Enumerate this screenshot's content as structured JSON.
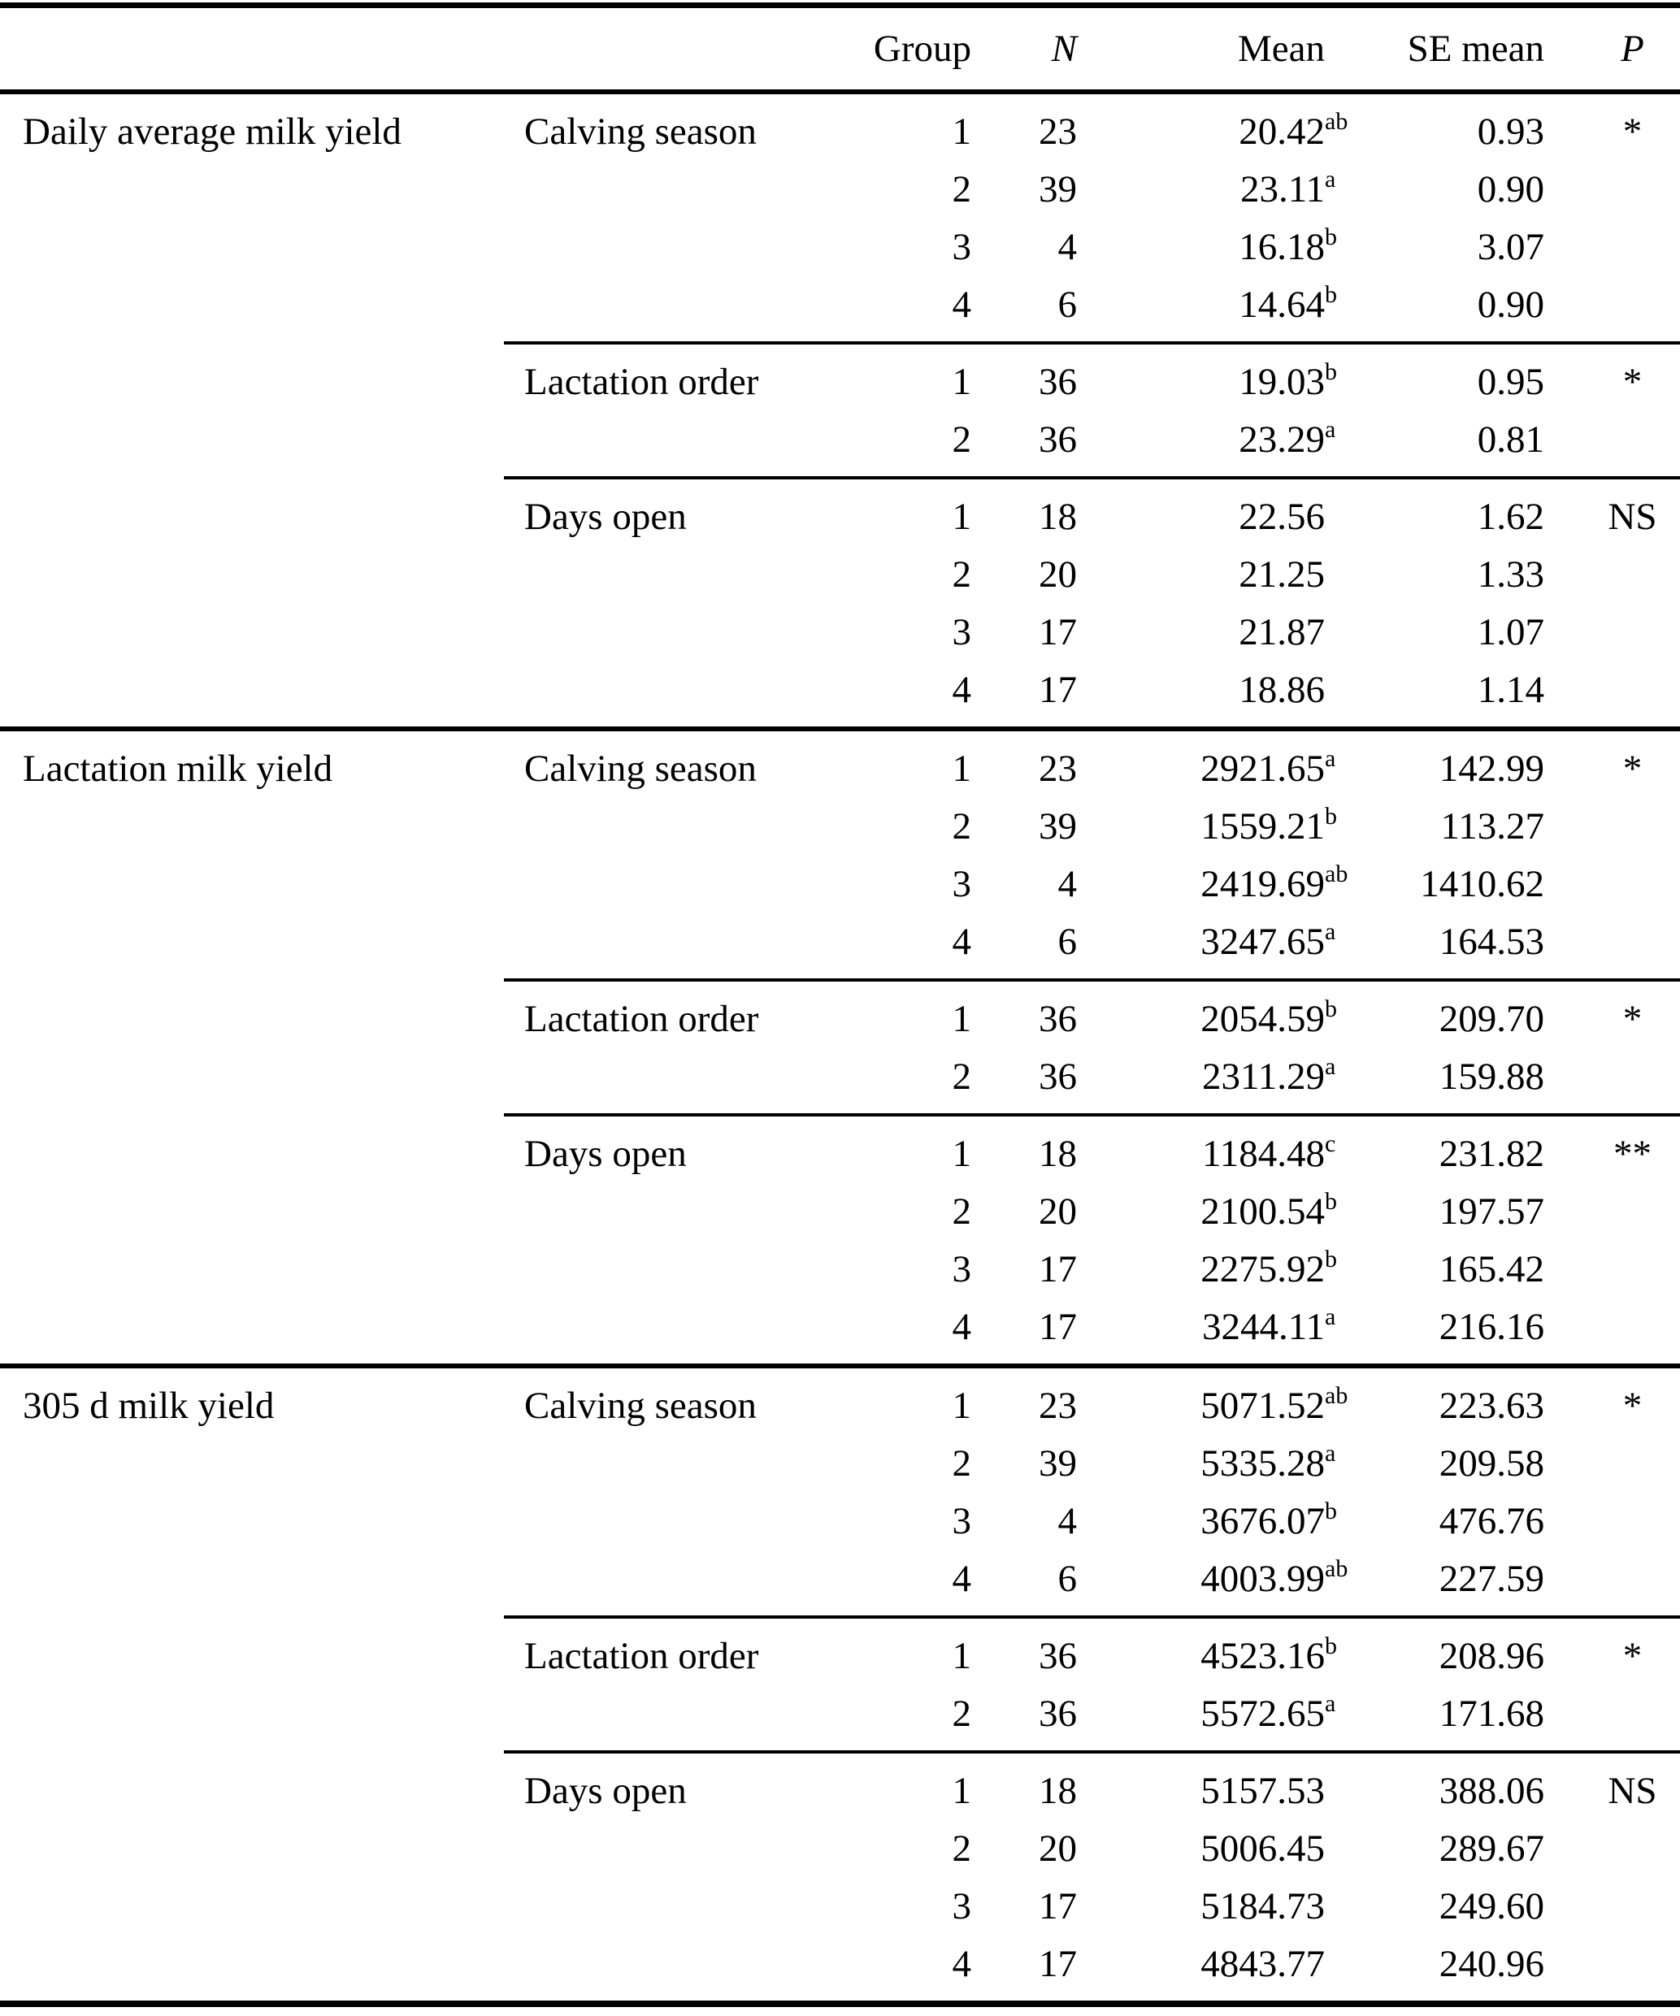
{
  "table": {
    "colors": {
      "text": "#000000",
      "background": "#ffffff",
      "rule": "#000000"
    },
    "headers": {
      "measure": "",
      "factor": "",
      "group": "Group",
      "n": "N",
      "mean": "Mean",
      "se_mean": "SE mean",
      "p": "P"
    },
    "sections": [
      {
        "measure": "Daily average milk yield",
        "blocks": [
          {
            "factor": "Calving season",
            "p": "*",
            "rows": [
              {
                "group": "1",
                "n": "23",
                "mean": "20.42",
                "sup": "ab",
                "se": "0.93"
              },
              {
                "group": "2",
                "n": "39",
                "mean": "23.11",
                "sup": "a",
                "se": "0.90"
              },
              {
                "group": "3",
                "n": "4",
                "mean": "16.18",
                "sup": "b",
                "se": "3.07"
              },
              {
                "group": "4",
                "n": "6",
                "mean": "14.64",
                "sup": "b",
                "se": "0.90"
              }
            ]
          },
          {
            "factor": "Lactation order",
            "p": "*",
            "rows": [
              {
                "group": "1",
                "n": "36",
                "mean": "19.03",
                "sup": "b",
                "se": "0.95"
              },
              {
                "group": "2",
                "n": "36",
                "mean": "23.29",
                "sup": "a",
                "se": "0.81"
              }
            ]
          },
          {
            "factor": "Days open",
            "p": "NS",
            "rows": [
              {
                "group": "1",
                "n": "18",
                "mean": "22.56",
                "sup": "",
                "se": "1.62"
              },
              {
                "group": "2",
                "n": "20",
                "mean": "21.25",
                "sup": "",
                "se": "1.33"
              },
              {
                "group": "3",
                "n": "17",
                "mean": "21.87",
                "sup": "",
                "se": "1.07"
              },
              {
                "group": "4",
                "n": "17",
                "mean": "18.86",
                "sup": "",
                "se": "1.14"
              }
            ]
          }
        ]
      },
      {
        "measure": "Lactation milk yield",
        "blocks": [
          {
            "factor": "Calving season",
            "p": "*",
            "rows": [
              {
                "group": "1",
                "n": "23",
                "mean": "2921.65",
                "sup": "a",
                "se": "142.99"
              },
              {
                "group": "2",
                "n": "39",
                "mean": "1559.21",
                "sup": "b",
                "se": "113.27"
              },
              {
                "group": "3",
                "n": "4",
                "mean": "2419.69",
                "sup": "ab",
                "se": "1410.62"
              },
              {
                "group": "4",
                "n": "6",
                "mean": "3247.65",
                "sup": "a",
                "se": "164.53"
              }
            ]
          },
          {
            "factor": "Lactation order",
            "p": "*",
            "rows": [
              {
                "group": "1",
                "n": "36",
                "mean": "2054.59",
                "sup": "b",
                "se": "209.70"
              },
              {
                "group": "2",
                "n": "36",
                "mean": "2311.29",
                "sup": "a",
                "se": "159.88"
              }
            ]
          },
          {
            "factor": "Days open",
            "p": "**",
            "rows": [
              {
                "group": "1",
                "n": "18",
                "mean": "1184.48",
                "sup": "c",
                "se": "231.82"
              },
              {
                "group": "2",
                "n": "20",
                "mean": "2100.54",
                "sup": "b",
                "se": "197.57"
              },
              {
                "group": "3",
                "n": "17",
                "mean": "2275.92",
                "sup": "b",
                "se": "165.42"
              },
              {
                "group": "4",
                "n": "17",
                "mean": "3244.11",
                "sup": "a",
                "se": "216.16"
              }
            ]
          }
        ]
      },
      {
        "measure": "305 d milk yield",
        "blocks": [
          {
            "factor": "Calving season",
            "p": "*",
            "rows": [
              {
                "group": "1",
                "n": "23",
                "mean": "5071.52",
                "sup": "ab",
                "se": "223.63"
              },
              {
                "group": "2",
                "n": "39",
                "mean": "5335.28",
                "sup": "a",
                "se": "209.58"
              },
              {
                "group": "3",
                "n": "4",
                "mean": "3676.07",
                "sup": "b",
                "se": "476.76"
              },
              {
                "group": "4",
                "n": "6",
                "mean": "4003.99",
                "sup": "ab",
                "se": "227.59"
              }
            ]
          },
          {
            "factor": "Lactation order",
            "p": "*",
            "rows": [
              {
                "group": "1",
                "n": "36",
                "mean": "4523.16",
                "sup": "b",
                "se": "208.96"
              },
              {
                "group": "2",
                "n": "36",
                "mean": "5572.65",
                "sup": "a",
                "se": "171.68"
              }
            ]
          },
          {
            "factor": "Days open",
            "p": "NS",
            "rows": [
              {
                "group": "1",
                "n": "18",
                "mean": "5157.53",
                "sup": "",
                "se": "388.06"
              },
              {
                "group": "2",
                "n": "20",
                "mean": "5006.45",
                "sup": "",
                "se": "289.67"
              },
              {
                "group": "3",
                "n": "17",
                "mean": "5184.73",
                "sup": "",
                "se": "249.60"
              },
              {
                "group": "4",
                "n": "17",
                "mean": "4843.77",
                "sup": "",
                "se": "240.96"
              }
            ]
          }
        ]
      }
    ]
  }
}
